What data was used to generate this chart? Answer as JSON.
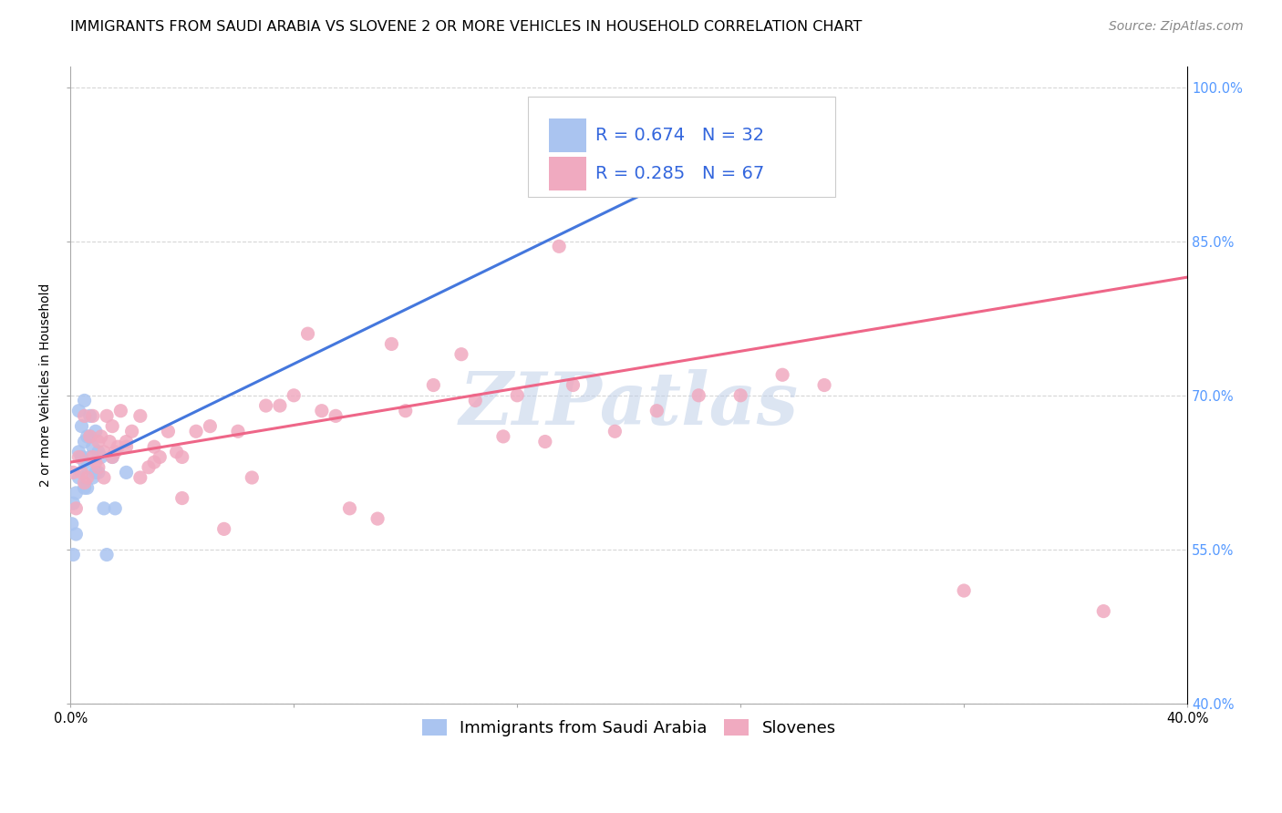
{
  "title": "IMMIGRANTS FROM SAUDI ARABIA VS SLOVENE 2 OR MORE VEHICLES IN HOUSEHOLD CORRELATION CHART",
  "source": "Source: ZipAtlas.com",
  "ylabel": "2 or more Vehicles in Household",
  "watermark": "ZIPatlas",
  "xlim": [
    0.0,
    0.4
  ],
  "ylim": [
    0.4,
    1.02
  ],
  "xticks": [
    0.0,
    0.08,
    0.16,
    0.24,
    0.32,
    0.4
  ],
  "xtick_labels": [
    "0.0%",
    "",
    "",
    "",
    "",
    "40.0%"
  ],
  "ytick_labels_right": [
    "100.0%",
    "85.0%",
    "70.0%",
    "55.0%",
    "40.0%"
  ],
  "yticks_right": [
    1.0,
    0.85,
    0.7,
    0.55,
    0.4
  ],
  "blue_R": 0.674,
  "blue_N": 32,
  "pink_R": 0.285,
  "pink_N": 67,
  "blue_color": "#aac4f0",
  "pink_color": "#f0aac0",
  "blue_line_color": "#4477dd",
  "pink_line_color": "#ee6688",
  "legend_label_blue": "Immigrants from Saudi Arabia",
  "legend_label_pink": "Slovenes",
  "blue_scatter_x": [
    0.0005,
    0.001,
    0.001,
    0.002,
    0.002,
    0.003,
    0.003,
    0.003,
    0.004,
    0.004,
    0.005,
    0.005,
    0.005,
    0.005,
    0.006,
    0.006,
    0.006,
    0.007,
    0.007,
    0.007,
    0.008,
    0.008,
    0.009,
    0.009,
    0.01,
    0.01,
    0.011,
    0.012,
    0.013,
    0.015,
    0.016,
    0.02
  ],
  "blue_scatter_y": [
    0.575,
    0.545,
    0.595,
    0.605,
    0.565,
    0.62,
    0.645,
    0.685,
    0.64,
    0.67,
    0.61,
    0.635,
    0.655,
    0.695,
    0.61,
    0.63,
    0.66,
    0.64,
    0.66,
    0.68,
    0.62,
    0.65,
    0.625,
    0.665,
    0.625,
    0.645,
    0.64,
    0.59,
    0.545,
    0.64,
    0.59,
    0.625
  ],
  "pink_scatter_x": [
    0.001,
    0.002,
    0.003,
    0.004,
    0.005,
    0.005,
    0.006,
    0.007,
    0.008,
    0.008,
    0.009,
    0.01,
    0.011,
    0.012,
    0.013,
    0.014,
    0.015,
    0.016,
    0.017,
    0.018,
    0.02,
    0.022,
    0.025,
    0.028,
    0.03,
    0.032,
    0.035,
    0.038,
    0.04,
    0.045,
    0.05,
    0.06,
    0.07,
    0.08,
    0.09,
    0.1,
    0.11,
    0.12,
    0.13,
    0.145,
    0.155,
    0.16,
    0.17,
    0.18,
    0.195,
    0.21,
    0.225,
    0.24,
    0.255,
    0.27,
    0.01,
    0.012,
    0.015,
    0.02,
    0.025,
    0.03,
    0.04,
    0.055,
    0.065,
    0.075,
    0.085,
    0.095,
    0.115,
    0.14,
    0.175,
    0.32,
    0.37
  ],
  "pink_scatter_y": [
    0.625,
    0.59,
    0.64,
    0.625,
    0.615,
    0.68,
    0.62,
    0.66,
    0.64,
    0.68,
    0.635,
    0.655,
    0.66,
    0.645,
    0.68,
    0.655,
    0.67,
    0.645,
    0.65,
    0.685,
    0.655,
    0.665,
    0.68,
    0.63,
    0.65,
    0.64,
    0.665,
    0.645,
    0.64,
    0.665,
    0.67,
    0.665,
    0.69,
    0.7,
    0.685,
    0.59,
    0.58,
    0.685,
    0.71,
    0.695,
    0.66,
    0.7,
    0.655,
    0.71,
    0.665,
    0.685,
    0.7,
    0.7,
    0.72,
    0.71,
    0.63,
    0.62,
    0.64,
    0.65,
    0.62,
    0.635,
    0.6,
    0.57,
    0.62,
    0.69,
    0.76,
    0.68,
    0.75,
    0.74,
    0.845,
    0.51,
    0.49
  ],
  "blue_line_x0": 0.0,
  "blue_line_y0": 0.625,
  "blue_line_x1": 0.265,
  "blue_line_y1": 0.975,
  "pink_line_x0": 0.0,
  "pink_line_y0": 0.635,
  "pink_line_x1": 0.4,
  "pink_line_y1": 0.815,
  "title_fontsize": 11.5,
  "source_fontsize": 10,
  "label_fontsize": 10,
  "tick_fontsize": 10.5,
  "legend_fontsize": 13,
  "watermark_fontsize": 58,
  "watermark_color": "#c0d0e8",
  "watermark_alpha": 0.55,
  "marker_size": 120
}
